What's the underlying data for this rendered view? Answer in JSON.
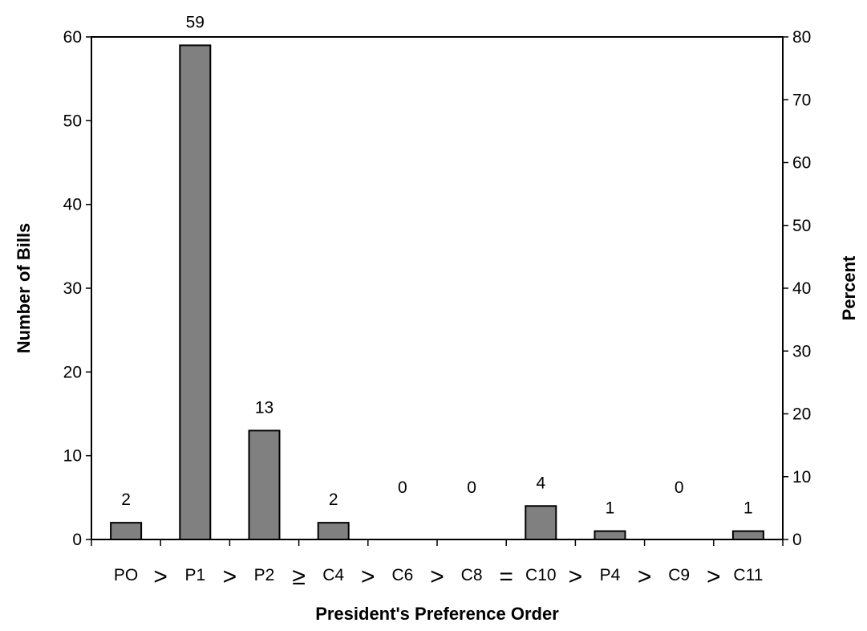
{
  "chart_data": {
    "type": "bar",
    "categories": [
      "PO",
      "P1",
      "P2",
      "C4",
      "C6",
      "C8",
      "C10",
      "P4",
      "C9",
      "C11"
    ],
    "separators": [
      ">",
      ">",
      "≥",
      ">",
      ">",
      "=",
      ">",
      ">",
      ">"
    ],
    "values": [
      2,
      59,
      13,
      2,
      0,
      0,
      4,
      1,
      0,
      1
    ],
    "data_labels": [
      "2",
      "59",
      "13",
      "2",
      "0",
      "0",
      "4",
      "1",
      "0",
      "1"
    ],
    "title": "",
    "xlabel": "President's Preference Order",
    "ylabel": "Number of Bills",
    "ylabel_right": "Percent",
    "ylim": [
      0,
      60
    ],
    "ylim_right": [
      0,
      80
    ],
    "yticks": [
      0,
      10,
      20,
      30,
      40,
      50,
      60
    ],
    "yticks_right": [
      0,
      10,
      20,
      30,
      40,
      50,
      60,
      70,
      80
    ],
    "grid": false,
    "bar_color": "#808080"
  }
}
